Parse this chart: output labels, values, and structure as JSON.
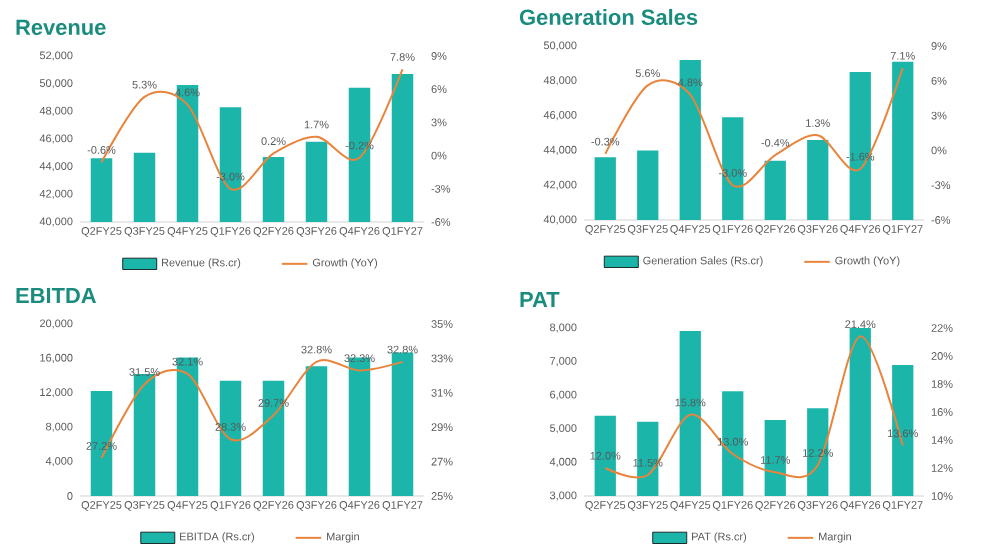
{
  "chart_data": [
    {
      "type": "bar",
      "title": "Revenue",
      "categories": [
        "Q2FY25",
        "Q3FY25",
        "Q4FY25",
        "Q1FY26",
        "Q2FY26",
        "Q3FY26",
        "Q4FY26",
        "Q1FY27"
      ],
      "series": [
        {
          "name": "Revenue (Rs.cr)",
          "color": "#1bb5a9",
          "values": [
            44600,
            45000,
            49900,
            48300,
            44700,
            45800,
            49700,
            50700
          ]
        },
        {
          "name": "Growth (YoY)",
          "type": "line",
          "axis": "y2",
          "color": "#e8843c",
          "values": [
            -0.6,
            5.3,
            4.6,
            -3.0,
            0.2,
            1.7,
            -0.2,
            7.8
          ],
          "value_labels": [
            "-0.6%",
            "5.3%",
            "4.6%",
            "-3.0%",
            "0.2%",
            "1.7%",
            "-0.2%",
            "7.8%"
          ]
        }
      ],
      "ylim": [
        40000,
        52000
      ],
      "yticks": [
        {
          "value": 40000,
          "label": "40,000"
        },
        {
          "value": 42000,
          "label": "42,000"
        },
        {
          "value": 44000,
          "label": "44,000"
        },
        {
          "value": 46000,
          "label": "46,000"
        },
        {
          "value": 48000,
          "label": "48,000"
        },
        {
          "value": 50000,
          "label": "50,000"
        },
        {
          "value": 52000,
          "label": "52,000"
        }
      ],
      "y2lim": [
        -6,
        9
      ],
      "y2ticks": [
        {
          "value": -6,
          "label": "-6%"
        },
        {
          "value": -3,
          "label": "-3%"
        },
        {
          "value": 0,
          "label": "0%"
        },
        {
          "value": 3,
          "label": "3%"
        },
        {
          "value": 6,
          "label": "6%"
        },
        {
          "value": 9,
          "label": "9%"
        }
      ],
      "legend": "bottom"
    },
    {
      "type": "bar",
      "title": "Generation Sales",
      "categories": [
        "Q2FY25",
        "Q3FY25",
        "Q4FY25",
        "Q1FY26",
        "Q2FY26",
        "Q3FY26",
        "Q4FY26",
        "Q1FY27"
      ],
      "series": [
        {
          "name": "Generation Sales (Rs.cr)",
          "color": "#1bb5a9",
          "values": [
            43600,
            44000,
            49200,
            45900,
            43400,
            44600,
            48500,
            49100
          ]
        },
        {
          "name": "Growth (YoY)",
          "type": "line",
          "axis": "y2",
          "color": "#e8843c",
          "values": [
            -0.3,
            5.6,
            4.8,
            -3.0,
            -0.4,
            1.3,
            -1.6,
            7.1
          ],
          "value_labels": [
            "-0.3%",
            "5.6%",
            "4.8%",
            "-3.0%",
            "-0.4%",
            "1.3%",
            "-1.6%",
            "7.1%"
          ]
        }
      ],
      "ylim": [
        40000,
        50000
      ],
      "yticks": [
        {
          "value": 40000,
          "label": "40,000"
        },
        {
          "value": 42000,
          "label": "42,000"
        },
        {
          "value": 44000,
          "label": "44,000"
        },
        {
          "value": 46000,
          "label": "46,000"
        },
        {
          "value": 48000,
          "label": "48,000"
        },
        {
          "value": 50000,
          "label": "50,000"
        }
      ],
      "y2lim": [
        -6,
        9
      ],
      "y2ticks": [
        {
          "value": -6,
          "label": "-6%"
        },
        {
          "value": -3,
          "label": "-3%"
        },
        {
          "value": 0,
          "label": "0%"
        },
        {
          "value": 3,
          "label": "3%"
        },
        {
          "value": 6,
          "label": "6%"
        },
        {
          "value": 9,
          "label": "9%"
        }
      ],
      "legend": "bottom"
    },
    {
      "type": "bar",
      "title": "EBITDA",
      "categories": [
        "Q2FY25",
        "Q3FY25",
        "Q4FY25",
        "Q1FY26",
        "Q2FY26",
        "Q3FY26",
        "Q4FY26",
        "Q1FY27"
      ],
      "series": [
        {
          "name": "EBITDA (Rs.cr)",
          "color": "#1bb5a9",
          "values": [
            12200,
            14200,
            16100,
            13400,
            13400,
            15100,
            16100,
            16700
          ]
        },
        {
          "name": "Margin",
          "type": "line",
          "axis": "y2",
          "color": "#e8843c",
          "values": [
            27.2,
            31.5,
            32.1,
            28.3,
            29.7,
            32.8,
            32.3,
            32.8
          ],
          "value_labels": [
            "27.2%",
            "31.5%",
            "32.1%",
            "28.3%",
            "29.7%",
            "32.8%",
            "32.3%",
            "32.8%"
          ]
        }
      ],
      "ylim": [
        0,
        20000
      ],
      "yticks": [
        0,
        {
          "value": 4000,
          "label": "4,000"
        },
        {
          "value": 8000,
          "label": "8,000"
        },
        {
          "value": 12000,
          "label": "12,000"
        },
        {
          "value": 16000,
          "label": "16,000"
        },
        {
          "value": 20000,
          "label": "20,000"
        }
      ],
      "y2lim": [
        25,
        35
      ],
      "y2ticks": [
        {
          "value": 25,
          "label": "25%"
        },
        {
          "value": 27,
          "label": "27%"
        },
        {
          "value": 29,
          "label": "29%"
        },
        {
          "value": 31,
          "label": "31%"
        },
        {
          "value": 33,
          "label": "33%"
        },
        {
          "value": 35,
          "label": "35%"
        }
      ],
      "legend": "bottom"
    },
    {
      "type": "bar",
      "title": "PAT",
      "categories": [
        "Q2FY25",
        "Q3FY25",
        "Q4FY25",
        "Q1FY26",
        "Q2FY26",
        "Q3FY26",
        "Q4FY26",
        "Q1FY27"
      ],
      "series": [
        {
          "name": "PAT (Rs.cr)",
          "color": "#1bb5a9",
          "values": [
            5390,
            5210,
            7910,
            6120,
            5260,
            5610,
            8000,
            6900
          ]
        },
        {
          "name": "Margin",
          "type": "line",
          "axis": "y2",
          "color": "#e8843c",
          "values": [
            12.0,
            11.5,
            15.8,
            13.0,
            11.7,
            12.2,
            21.4,
            13.6
          ],
          "value_labels": [
            "12.0%",
            "11.5%",
            "15.8%",
            "13.0%",
            "11.7%",
            "12.2%",
            "21.4%",
            "13.6%"
          ]
        }
      ],
      "ylim": [
        3000,
        8000
      ],
      "yticks": [
        {
          "value": 3000,
          "label": "3,000"
        },
        {
          "value": 4000,
          "label": "4,000"
        },
        {
          "value": 5000,
          "label": "5,000"
        },
        {
          "value": 6000,
          "label": "6,000"
        },
        {
          "value": 7000,
          "label": "7,000"
        },
        {
          "value": 8000,
          "label": "8,000"
        }
      ],
      "y2lim": [
        10,
        22
      ],
      "y2ticks": [
        {
          "value": 10,
          "label": "10%"
        },
        {
          "value": 12,
          "label": "12%"
        },
        {
          "value": 14,
          "label": "14%"
        },
        {
          "value": 16,
          "label": "16%"
        },
        {
          "value": 18,
          "label": "18%"
        },
        {
          "value": 20,
          "label": "20%"
        },
        {
          "value": 22,
          "label": "22%"
        }
      ],
      "legend": "bottom"
    }
  ]
}
